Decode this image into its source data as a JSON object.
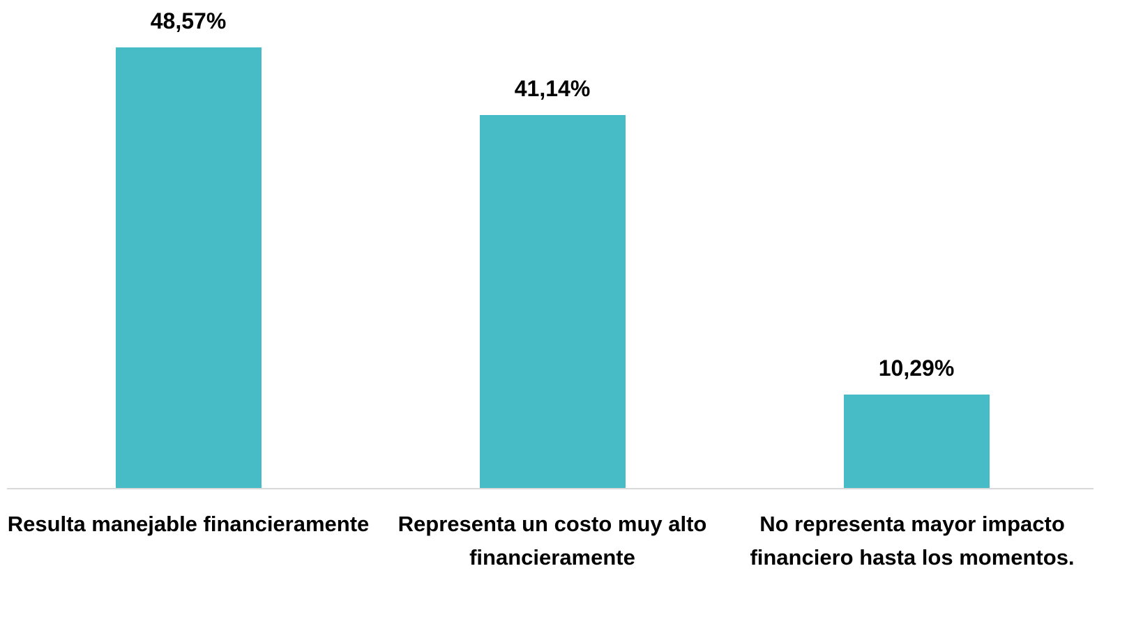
{
  "chart_data": {
    "type": "bar",
    "categories": [
      "Resulta manejable financieramente",
      "Representa un costo muy alto financieramente",
      "No representa mayor impacto financiero hasta los momentos."
    ],
    "values": [
      48.57,
      41.14,
      10.29
    ],
    "value_labels": [
      "48,57%",
      "41,14%",
      "10,29%"
    ],
    "color": "#47bcc6"
  }
}
